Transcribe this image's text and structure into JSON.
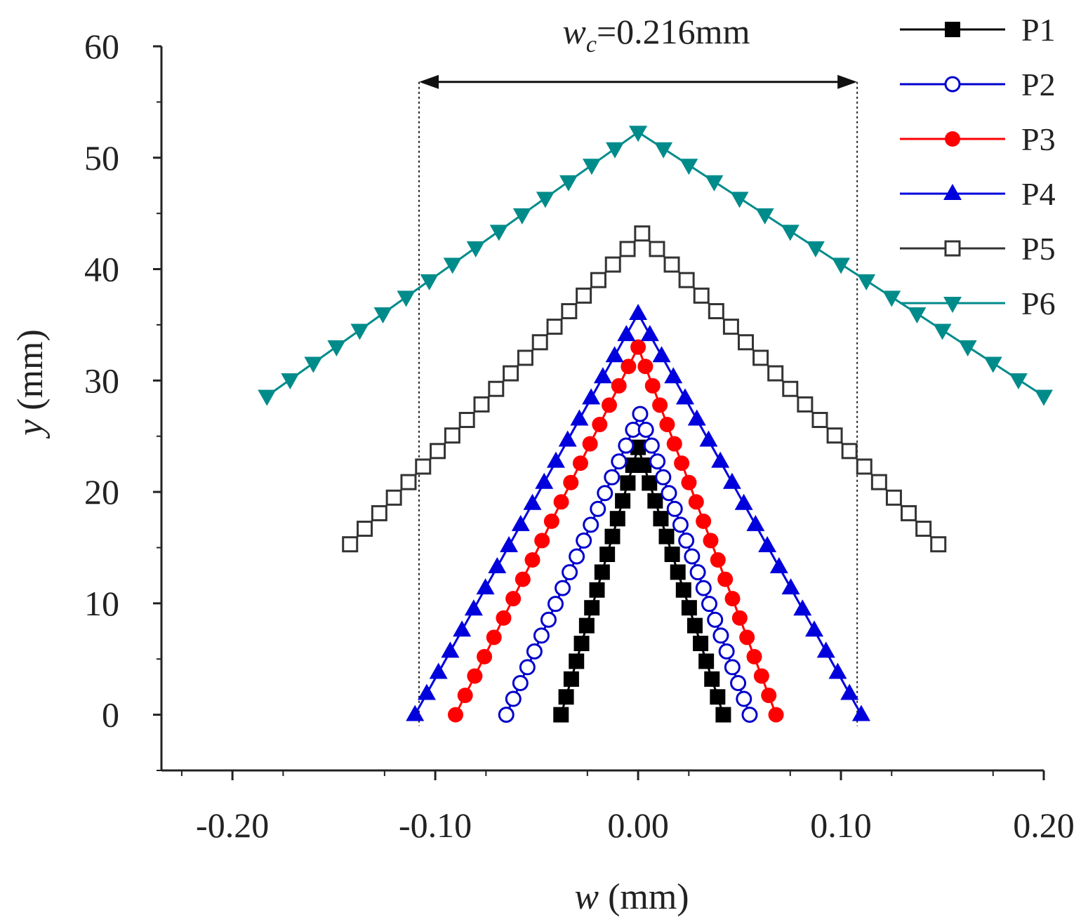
{
  "chart_data": {
    "type": "line",
    "title": "",
    "xlabel": "w (mm)",
    "xlabel_var": "w",
    "xlabel_unit": " (mm)",
    "ylabel": "y (mm)",
    "ylabel_var": "y",
    "ylabel_unit": " (mm)",
    "xlim": [
      -0.235,
      0.2
    ],
    "ylim": [
      -5,
      60
    ],
    "xticks": [
      -0.2,
      -0.1,
      0.0,
      0.1,
      0.2
    ],
    "xtick_labels": [
      "-0.20",
      "-0.10",
      "0.00",
      "0.10",
      "0.20"
    ],
    "yticks": [
      0,
      10,
      20,
      30,
      40,
      50,
      60
    ],
    "ytick_labels": [
      "0",
      "10",
      "20",
      "30",
      "40",
      "50",
      "60"
    ],
    "grid": false,
    "legend_position": "top-right",
    "annotation": {
      "label_var": "w",
      "label_sub": "c",
      "label_value": "=0.216mm",
      "from_x": -0.108,
      "to_x": 0.108,
      "arrow_y": 56.8,
      "guide_bottom_y": -1
    },
    "series": [
      {
        "name": "P1",
        "color": "#000000",
        "marker": "square-filled",
        "apex_x": 0.0,
        "apex_y": 24,
        "left_x": -0.038,
        "right_x": 0.042,
        "n_left": 15,
        "n_right": 15
      },
      {
        "name": "P2",
        "color": "#0000cc",
        "marker": "circle-open",
        "apex_x": 0.001,
        "apex_y": 27,
        "left_x": -0.065,
        "right_x": 0.055,
        "n_left": 19,
        "n_right": 19
      },
      {
        "name": "P3",
        "color": "#ff0000",
        "marker": "circle-filled",
        "apex_x": 0.0,
        "apex_y": 33,
        "left_x": -0.09,
        "right_x": 0.068,
        "n_left": 19,
        "n_right": 19
      },
      {
        "name": "P4",
        "color": "#0000dd",
        "marker": "triangle-up",
        "apex_x": 0.0,
        "apex_y": 36,
        "left_x": -0.11,
        "right_x": 0.11,
        "n_left": 19,
        "n_right": 19
      },
      {
        "name": "P5",
        "color": "#333333",
        "marker": "square-open",
        "apex_x": 0.002,
        "apex_y": 43.2,
        "left_x": -0.142,
        "right_x": 0.148,
        "left_end_y": 15.3,
        "right_end_y": 15.3,
        "n_left": 20,
        "n_right": 20
      },
      {
        "name": "P6",
        "color": "#008b8b",
        "marker": "triangle-down",
        "apex_x": 0.0,
        "apex_y": 52.3,
        "left_x": -0.183,
        "right_x": 0.2,
        "left_end_y": 28.6,
        "right_end_y": 28.6,
        "n_left": 16,
        "n_right": 16
      }
    ]
  }
}
